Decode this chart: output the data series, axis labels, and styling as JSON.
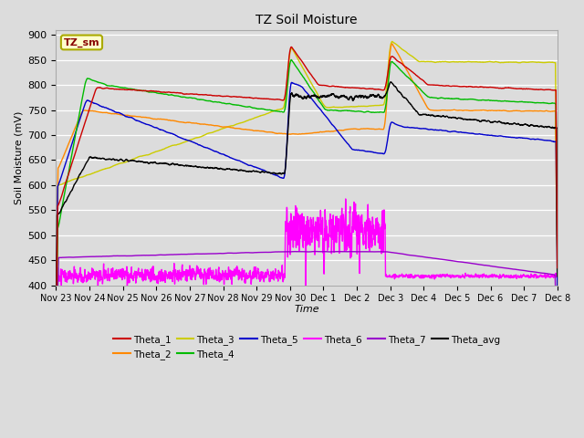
{
  "title": "TZ Soil Moisture",
  "xlabel": "Time",
  "ylabel": "Soil Moisture (mV)",
  "ylim": [
    400,
    910
  ],
  "yticks": [
    400,
    450,
    500,
    550,
    600,
    650,
    700,
    750,
    800,
    850,
    900
  ],
  "plot_bg_color": "#dcdcdc",
  "fig_bg_color": "#dcdcdc",
  "legend_label": "TZ_sm",
  "colors": {
    "Theta_1": "#cc0000",
    "Theta_2": "#ff8800",
    "Theta_3": "#cccc00",
    "Theta_4": "#00bb00",
    "Theta_5": "#0000cc",
    "Theta_6": "#ff00ff",
    "Theta_7": "#9900cc",
    "Theta_avg": "#000000"
  },
  "xtick_labels": [
    "Nov 23",
    "Nov 24",
    "Nov 25",
    "Nov 26",
    "Nov 27",
    "Nov 28",
    "Nov 29",
    "Nov 30",
    "Dec 1",
    "Dec 2",
    "Dec 3",
    "Dec 4",
    "Dec 5",
    "Dec 6",
    "Dec 7",
    "Dec 8"
  ],
  "xtick_positions": [
    0,
    1,
    2,
    3,
    4,
    5,
    6,
    7,
    8,
    9,
    10,
    11,
    12,
    13,
    14,
    15
  ]
}
